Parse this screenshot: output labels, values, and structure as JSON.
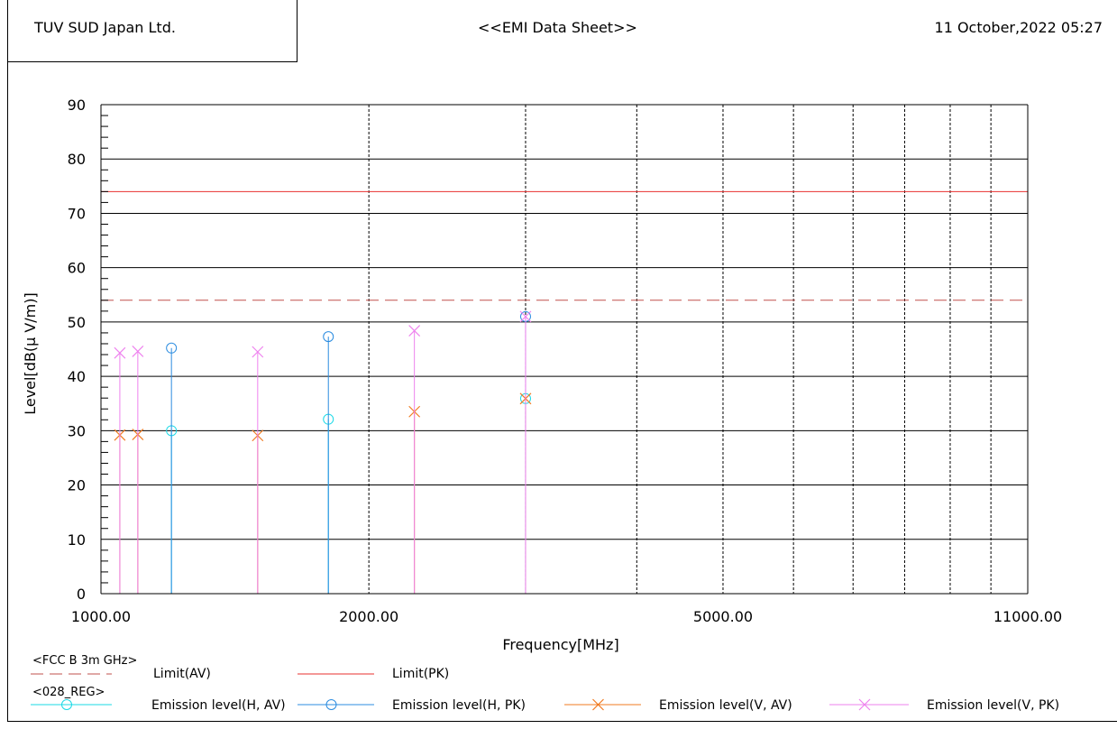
{
  "header": {
    "company": "TUV SUD Japan Ltd.",
    "sheet_title": "<<EMI Data Sheet>>",
    "date": "11 October,2022 05:27"
  },
  "legend": {
    "group1_title": "<FCC B 3m GHz>",
    "group2_title": "<028_REG>"
  },
  "chart_data": {
    "type": "scatter",
    "xlabel": "Frequency[MHz]",
    "ylabel": "Level[dB(μ V/m)]",
    "xscale": "log",
    "xlim": [
      1000,
      11000
    ],
    "ylim": [
      0,
      90
    ],
    "yticks": [
      0,
      10,
      20,
      30,
      40,
      50,
      60,
      70,
      80,
      90
    ],
    "xtick_labels": [
      "1000.00",
      "2000.00",
      "5000.00",
      "11000.00"
    ],
    "xtick_values": [
      1000,
      2000,
      5000,
      11000
    ],
    "grid": true,
    "limits": [
      {
        "name": "Limit(AV)",
        "value": 54,
        "color": "#c0504d",
        "style": "dashed"
      },
      {
        "name": "Limit(PK)",
        "value": 74,
        "color": "#e8302f",
        "style": "solid"
      }
    ],
    "series": [
      {
        "name": "Emission level(H, AV)",
        "color": "#1ad9e6",
        "marker": "circle",
        "points": [
          [
            1200,
            30.0
          ],
          [
            1801,
            32.1
          ],
          [
            3000,
            35.9
          ]
        ]
      },
      {
        "name": "Emission level(H, PK)",
        "color": "#2b8ce0",
        "marker": "circle",
        "points": [
          [
            1200,
            45.2
          ],
          [
            1801,
            47.3
          ],
          [
            3000,
            51.0
          ]
        ]
      },
      {
        "name": "Emission level(V, AV)",
        "color": "#f07b22",
        "marker": "x",
        "points": [
          [
            1050,
            29.2
          ],
          [
            1100,
            29.3
          ],
          [
            1500,
            29.1
          ],
          [
            2250,
            33.5
          ],
          [
            3000,
            35.9
          ]
        ]
      },
      {
        "name": "Emission level(V, PK)",
        "color": "#ee82ee",
        "marker": "x",
        "points": [
          [
            1050,
            44.3
          ],
          [
            1100,
            44.6
          ],
          [
            1500,
            44.5
          ],
          [
            2250,
            48.4
          ],
          [
            3000,
            51.0
          ]
        ]
      }
    ],
    "legend": "bottom"
  }
}
